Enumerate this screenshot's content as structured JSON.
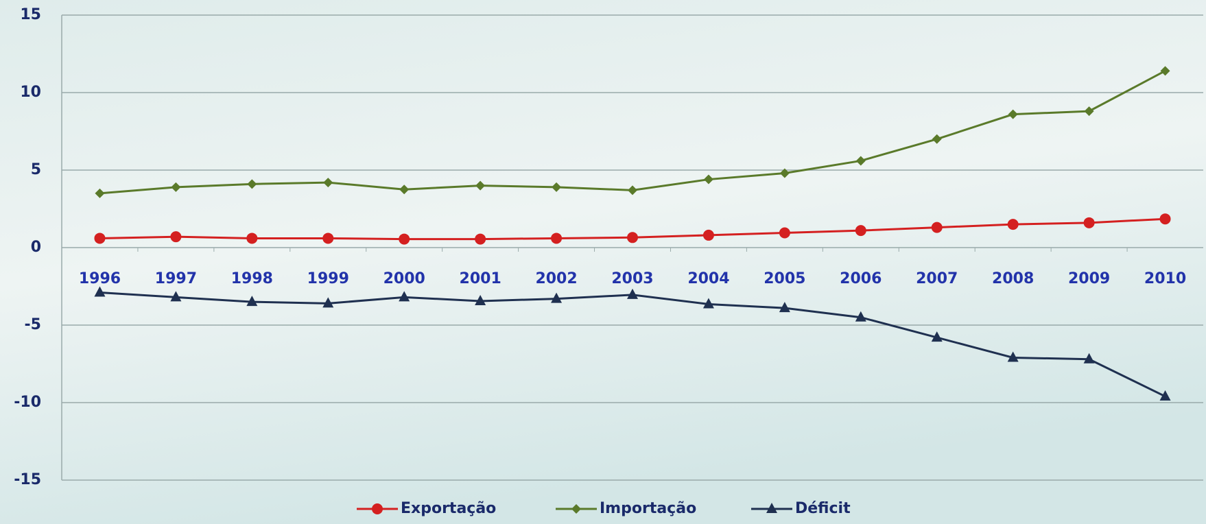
{
  "chart_data": {
    "type": "line",
    "categories": [
      "1996",
      "1997",
      "1998",
      "1999",
      "2000",
      "2001",
      "2002",
      "2003",
      "2004",
      "2005",
      "2006",
      "2007",
      "2008",
      "2009",
      "2010"
    ],
    "series": [
      {
        "name": "Exportação",
        "color": "#d42020",
        "marker": "circle",
        "values": [
          0.6,
          0.7,
          0.6,
          0.6,
          0.55,
          0.55,
          0.6,
          0.65,
          0.8,
          0.95,
          1.1,
          1.3,
          1.5,
          1.6,
          1.85
        ]
      },
      {
        "name": "Importação",
        "color": "#5a7a2a",
        "marker": "diamond",
        "values": [
          3.5,
          3.9,
          4.1,
          4.2,
          3.75,
          4.0,
          3.9,
          3.7,
          4.4,
          4.8,
          5.6,
          7.0,
          8.6,
          8.8,
          11.4
        ]
      },
      {
        "name": "Déficit",
        "color": "#1f3050",
        "marker": "triangle",
        "values": [
          -2.9,
          -3.2,
          -3.5,
          -3.6,
          -3.2,
          -3.45,
          -3.3,
          -3.05,
          -3.65,
          -3.9,
          -4.5,
          -5.8,
          -7.1,
          -7.2,
          -9.6
        ]
      }
    ],
    "ylim": [
      -15,
      15
    ],
    "yticks": [
      -15,
      -10,
      -5,
      0,
      5,
      10,
      15
    ],
    "grid": true,
    "legend": "bottom"
  }
}
